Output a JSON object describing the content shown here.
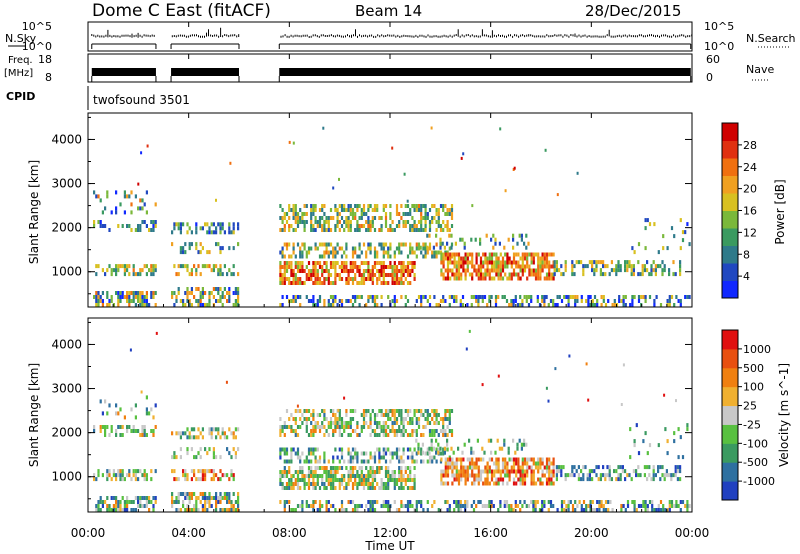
{
  "header": {
    "station": "Dome C East (fitACF)",
    "beam": "Beam 14",
    "date": "28/Dec/2015"
  },
  "panels": {
    "nsky_label": "N.Sky",
    "nsearch_label": "N.Search",
    "freq_label_top": "Freq.",
    "freq_label_unit": "[MHz]",
    "nave_label": "Nave",
    "cpid_label": "CPID",
    "cpid_value": "twofsound 3501",
    "noise_ticks": [
      "10^5",
      "10^0"
    ],
    "noise_right_ticks": [
      "10^5",
      "10^0"
    ],
    "freq_ticks": [
      "18",
      "8"
    ],
    "nave_ticks": [
      "60",
      "0"
    ]
  },
  "chart_data": [
    {
      "type": "heatmap",
      "name": "power",
      "ylabel": "Slant Range [km]",
      "ylim": [
        200,
        4600
      ],
      "yticks": [
        1000,
        2000,
        3000,
        4000
      ],
      "colorbar_label": "Power [dB]",
      "colorbar_ticks": [
        "28",
        "24",
        "20",
        "16",
        "12",
        "8",
        "4"
      ],
      "colorbar_range": [
        0,
        32
      ],
      "colors": [
        "#1028ff",
        "#2048c0",
        "#2e7a8a",
        "#3a9a60",
        "#7ab83a",
        "#d8c020",
        "#f0a020",
        "#f07010",
        "#e03010",
        "#d00000"
      ]
    },
    {
      "type": "heatmap",
      "name": "velocity",
      "ylabel": "Slant Range [km]",
      "ylim": [
        200,
        4600
      ],
      "yticks": [
        1000,
        2000,
        3000,
        4000
      ],
      "xlabel": "Time UT",
      "xticks": [
        "00:00",
        "04:00",
        "08:00",
        "12:00",
        "16:00",
        "20:00",
        "00:00"
      ],
      "colorbar_label": "Velocity [m s^-1]",
      "colorbar_ticks": [
        "1000",
        "500",
        "100",
        "25",
        "-25",
        "-100",
        "-500",
        "-1000"
      ],
      "colors": [
        "#2040c0",
        "#2e70a0",
        "#3a9a60",
        "#58c040",
        "#c8c8c8",
        "#f0b030",
        "#f08010",
        "#e85010",
        "#e01010"
      ]
    }
  ]
}
